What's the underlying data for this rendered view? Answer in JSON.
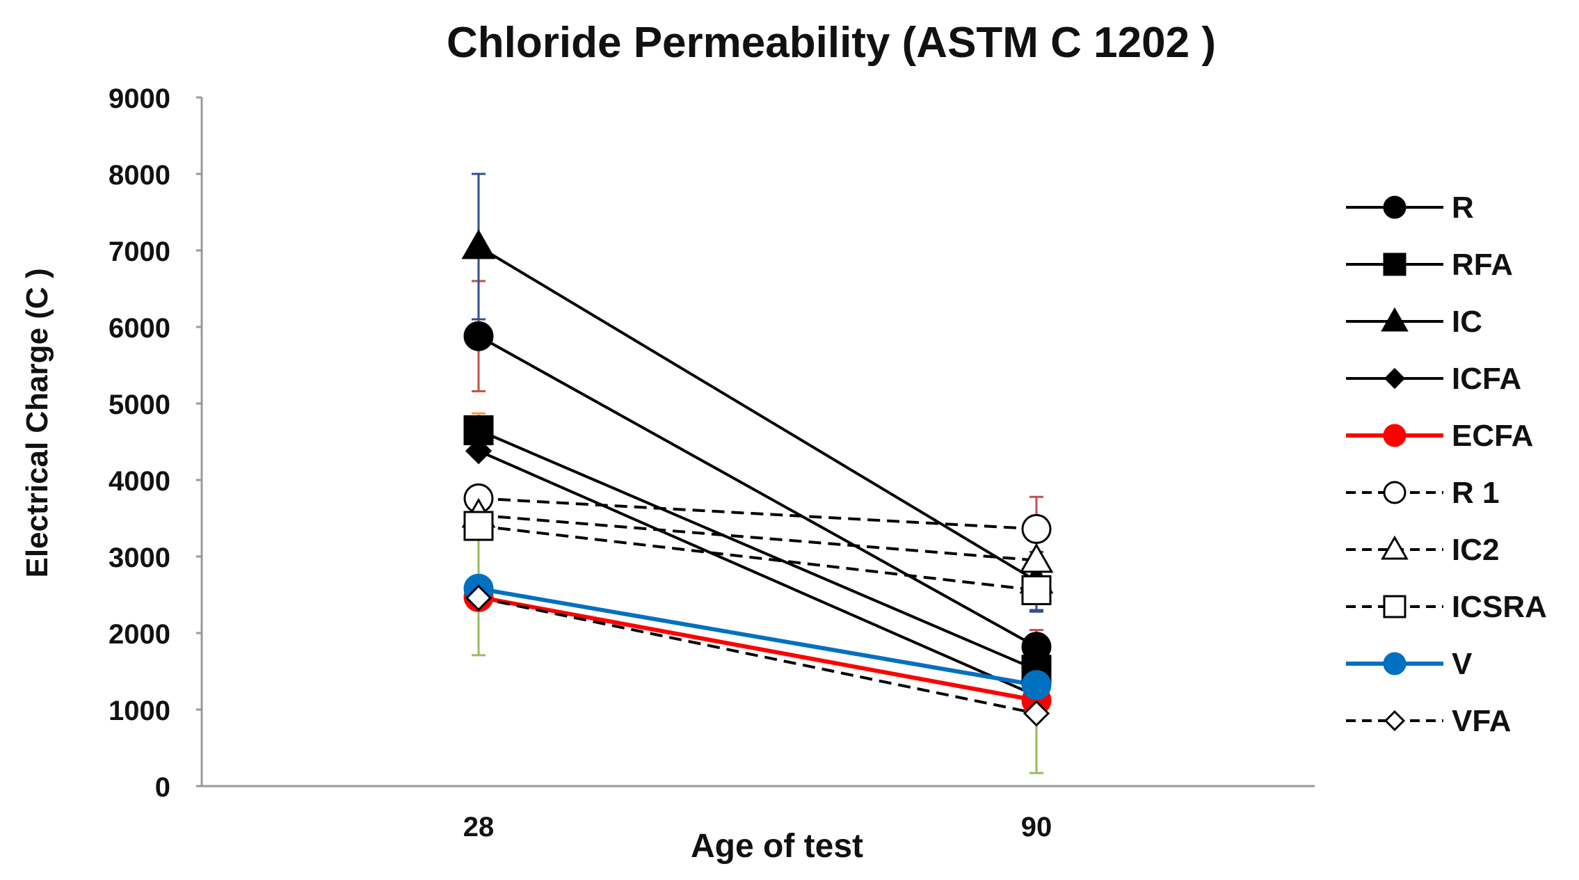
{
  "chart_data": {
    "type": "line",
    "title": "Chloride Permeability (ASTM C 1202 )",
    "xlabel": "Age of test",
    "ylabel": "Electrical Charge (C )",
    "categories": [
      "28",
      "90"
    ],
    "ylim": [
      0,
      9000
    ],
    "yticks": [
      "0",
      "1000",
      "2000",
      "3000",
      "4000",
      "5000",
      "6000",
      "7000",
      "8000",
      "9000"
    ],
    "grid": false,
    "legend_position": "right",
    "series": [
      {
        "name": "R",
        "values": [
          5880,
          1820
        ],
        "color": "#000000",
        "marker": "circle",
        "filled": true,
        "dashed": false,
        "errors": [
          {
            "color": "#c0504d",
            "err": 720
          },
          {
            "color": "#c0504d",
            "err": 220
          }
        ]
      },
      {
        "name": "RFA",
        "values": [
          4650,
          1520
        ],
        "color": "#000000",
        "marker": "square",
        "filled": true,
        "dashed": false,
        "errors": [
          {
            "color": "#f79646",
            "err": 220
          },
          null
        ]
      },
      {
        "name": "IC",
        "values": [
          7050,
          2680
        ],
        "color": "#000000",
        "marker": "triangle",
        "filled": true,
        "dashed": false,
        "errors": [
          {
            "color": "#2f4f8f",
            "err": 950
          },
          {
            "color": "#2f4f8f",
            "err": 380
          }
        ]
      },
      {
        "name": "ICFA",
        "values": [
          4380,
          1180
        ],
        "color": "#000000",
        "marker": "diamond",
        "filled": true,
        "dashed": false,
        "errors": [
          null,
          null
        ]
      },
      {
        "name": "ECFA",
        "values": [
          2470,
          1120
        ],
        "color": "#ff0000",
        "marker": "circle",
        "filled": true,
        "dashed": false,
        "errors": [
          null,
          null
        ]
      },
      {
        "name": "R 1",
        "values": [
          3760,
          3360
        ],
        "color": "#000000",
        "marker": "circle",
        "filled": false,
        "dashed": true,
        "errors": [
          null,
          {
            "color": "#c0504d",
            "err": 420
          }
        ]
      },
      {
        "name": "IC2",
        "values": [
          3540,
          2950
        ],
        "color": "#000000",
        "marker": "triangle",
        "filled": false,
        "dashed": true,
        "errors": [
          null,
          null
        ]
      },
      {
        "name": "ICSRA",
        "values": [
          3400,
          2560
        ],
        "color": "#000000",
        "marker": "square",
        "filled": false,
        "dashed": true,
        "errors": [
          null,
          {
            "color": "#2f4f8f",
            "err": 280
          }
        ]
      },
      {
        "name": "V",
        "values": [
          2580,
          1320
        ],
        "color": "#0070c0",
        "marker": "circle",
        "filled": true,
        "dashed": false,
        "errors": [
          {
            "color": "#9bbb59",
            "err": 870
          },
          null
        ]
      },
      {
        "name": "VFA",
        "values": [
          2460,
          950
        ],
        "color": "#000000",
        "marker": "diamond",
        "filled": false,
        "dashed": true,
        "errors": [
          null,
          {
            "color": "#9bbb59",
            "err": 780
          }
        ]
      }
    ]
  }
}
